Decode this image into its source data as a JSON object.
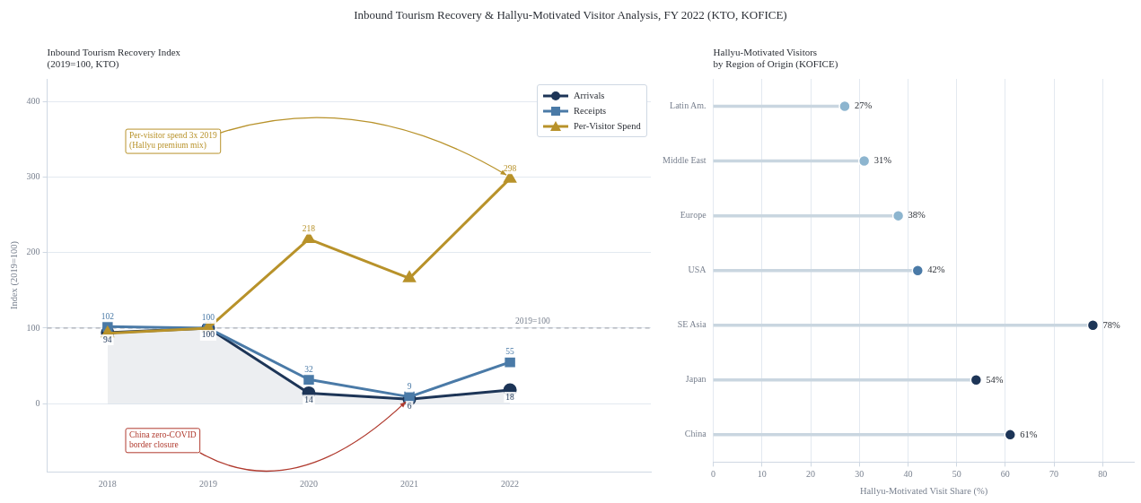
{
  "chart_data": [
    {
      "type": "line",
      "title": "Inbound Tourism Recovery & Hallyu-Motivated Visitor Analysis, FY 2022 (KTO, KOFICE)",
      "subtitle": "Inbound Tourism Recovery Index\n(2019=100, KTO)",
      "ylabel": "Index (2019=100)",
      "x": [
        2018,
        2019,
        2020,
        2021,
        2022
      ],
      "xlim": [
        2017.4,
        2023.4
      ],
      "xticks": [
        2018,
        2019,
        2020,
        2021,
        2022
      ],
      "ylim": [
        -90,
        430
      ],
      "yticks": [
        0,
        100,
        200,
        300,
        400
      ],
      "grid": "y",
      "legend": "top right",
      "line_style": "solid",
      "series": [
        {
          "name": "Arrivals",
          "type": "area",
          "color": "#1d3557",
          "marker": "circle",
          "values": [
            94,
            100,
            14,
            6,
            18
          ],
          "value_labels": [
            "94",
            "100",
            "14",
            "6",
            "18"
          ]
        },
        {
          "name": "Receipts",
          "color": "#4a7aa7",
          "marker": "square",
          "values": [
            102,
            100,
            32,
            9,
            55
          ],
          "value_labels": [
            "102",
            "100",
            "32",
            "9",
            "55"
          ]
        },
        {
          "name": "Per-Visitor Spend",
          "color": "#b8922a",
          "marker": "triangle",
          "values": [
            93,
            100,
            218,
            166,
            298
          ],
          "value_labels": [
            null,
            null,
            "218",
            null,
            "298"
          ]
        }
      ],
      "ref_lines": [
        {
          "axis": "y",
          "value": 100,
          "label": "2019=100",
          "color": "#a9adb5",
          "line_style": "dashed"
        }
      ],
      "annotations": [
        {
          "text": "Per-visitor spend 3x 2019\n(Hallyu premium mix)",
          "x": 2022,
          "y": 298
        },
        {
          "text": "China zero-COVID\nborder closure",
          "x": 2021,
          "y": 6
        }
      ]
    },
    {
      "type": "lollipop",
      "orientation": "horizontal",
      "title": "Hallyu-Motivated Visitors\nby Region of Origin (KOFICE)",
      "xlabel": "Hallyu-Motivated Visit Share (%)",
      "categories": [
        "Latin Am.",
        "Middle East",
        "Europe",
        "USA",
        "SE Asia",
        "Japan",
        "China"
      ],
      "values": [
        27,
        31,
        38,
        42,
        78,
        54,
        61
      ],
      "colors": [
        "#8db5cf",
        "#8db5cf",
        "#8db5cf",
        "#4a7aa7",
        "#1d3557",
        "#1d3557",
        "#1d3557"
      ],
      "value_labels": [
        "27%",
        "31%",
        "38%",
        "42%",
        "78%",
        "54%",
        "61%"
      ],
      "xlim": [
        0,
        86.5
      ],
      "xticks": [
        0,
        10,
        20,
        30,
        40,
        50,
        60,
        70,
        80
      ],
      "grid": "x"
    }
  ]
}
